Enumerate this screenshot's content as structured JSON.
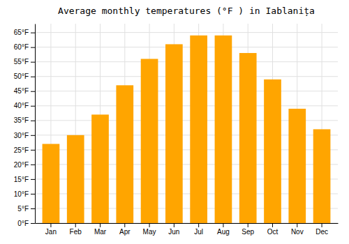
{
  "chart_data": {
    "type": "bar",
    "title": "Average monthly temperatures (°F ) in Iablanița",
    "categories": [
      "Jan",
      "Feb",
      "Mar",
      "Apr",
      "May",
      "Jun",
      "Jul",
      "Aug",
      "Sep",
      "Oct",
      "Nov",
      "Dec"
    ],
    "values": [
      27,
      30,
      37,
      47,
      56,
      61,
      64,
      64,
      58,
      49,
      39,
      32
    ],
    "color": "#FFA500",
    "ylim": [
      0,
      68
    ],
    "yticks": [
      {
        "value": 0,
        "label": "0°F"
      },
      {
        "value": 5,
        "label": "5°F"
      },
      {
        "value": 10,
        "label": "10°F"
      },
      {
        "value": 15,
        "label": "15°F"
      },
      {
        "value": 20,
        "label": "20°F"
      },
      {
        "value": 25,
        "label": "25°F"
      },
      {
        "value": 30,
        "label": "30°F"
      },
      {
        "value": 35,
        "label": "35°F"
      },
      {
        "value": 40,
        "label": "40°F"
      },
      {
        "value": 45,
        "label": "45°F"
      },
      {
        "value": 50,
        "label": "50°F"
      },
      {
        "value": 55,
        "label": "55°F"
      },
      {
        "value": 60,
        "label": "60°F"
      },
      {
        "value": 65,
        "label": "65°F"
      }
    ],
    "grid": true
  }
}
